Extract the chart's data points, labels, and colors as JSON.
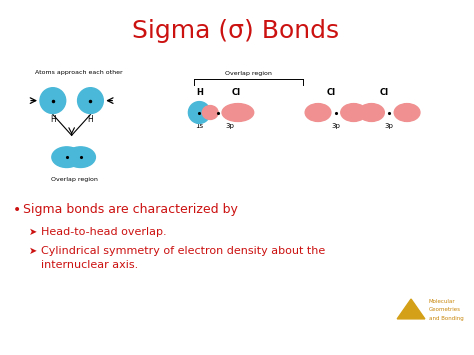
{
  "title": "Sigma (σ) Bonds",
  "title_color": "#cc1111",
  "bg_color": "#ffffff",
  "bullet_main": "Sigma bonds are characterized by",
  "sub1": "Head-to-head overlap.",
  "sub2_line1": "Cylindrical symmetry of electron density about the",
  "sub2_line2": "internuclear axis.",
  "blue_color": "#4ab8d8",
  "pink_color": "#f09090",
  "watermark_line1": "Molecular",
  "watermark_line2": "Geometries",
  "watermark_line3": "and Bonding",
  "watermark_color": "#c8860a",
  "triangle_color": "#d4a017"
}
